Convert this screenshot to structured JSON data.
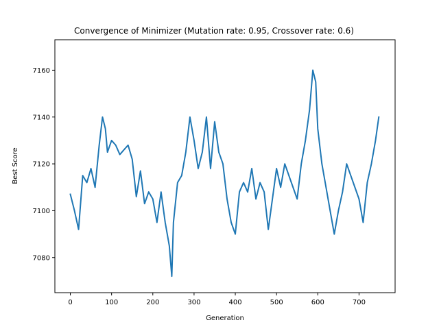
{
  "chart_data": {
    "type": "line",
    "title": "Convergence of Minimizer (Mutation rate: 0.95, Crossover rate: 0.6)",
    "xlabel": "Generation",
    "ylabel": "Best Score",
    "xlim": [
      -37.5,
      787.5
    ],
    "ylim": [
      7065,
      7173
    ],
    "xticks": [
      0,
      100,
      200,
      300,
      400,
      500,
      600,
      700
    ],
    "xtick_labels": [
      "0",
      "100",
      "200",
      "300",
      "400",
      "500",
      "600",
      "700"
    ],
    "yticks": [
      7080,
      7100,
      7120,
      7140,
      7160
    ],
    "ytick_labels": [
      "7080",
      "7100",
      "7120",
      "7140",
      "7160"
    ],
    "grid": false,
    "legend": "none",
    "colors": {
      "line": "#1f77b4",
      "axes": "#000000",
      "background": "#ffffff"
    },
    "series": [
      {
        "x": [
          0,
          10,
          20,
          30,
          40,
          50,
          60,
          70,
          78,
          85,
          90,
          100,
          110,
          120,
          130,
          140,
          150,
          160,
          170,
          180,
          190,
          200,
          210,
          220,
          230,
          240,
          246,
          250,
          260,
          270,
          280,
          290,
          300,
          310,
          320,
          330,
          340,
          350,
          360,
          370,
          380,
          390,
          400,
          410,
          420,
          430,
          440,
          450,
          460,
          470,
          480,
          490,
          500,
          510,
          520,
          530,
          540,
          550,
          560,
          570,
          580,
          588,
          595,
          600,
          610,
          620,
          630,
          640,
          650,
          660,
          670,
          680,
          690,
          700,
          710,
          720,
          730,
          740,
          748
        ],
        "y": [
          7107,
          7100,
          7092,
          7115,
          7112,
          7118,
          7110,
          7128,
          7140,
          7135,
          7125,
          7130,
          7128,
          7124,
          7126,
          7128,
          7122,
          7106,
          7117,
          7103,
          7108,
          7105,
          7095,
          7108,
          7095,
          7085,
          7072,
          7095,
          7112,
          7115,
          7125,
          7140,
          7130,
          7118,
          7125,
          7140,
          7118,
          7138,
          7125,
          7120,
          7105,
          7095,
          7090,
          7108,
          7112,
          7108,
          7118,
          7105,
          7112,
          7108,
          7092,
          7105,
          7118,
          7110,
          7120,
          7115,
          7110,
          7105,
          7120,
          7130,
          7143,
          7160,
          7155,
          7135,
          7120,
          7110,
          7100,
          7090,
          7100,
          7108,
          7120,
          7115,
          7110,
          7105,
          7095,
          7112,
          7120,
          7130,
          7140
        ]
      }
    ]
  }
}
